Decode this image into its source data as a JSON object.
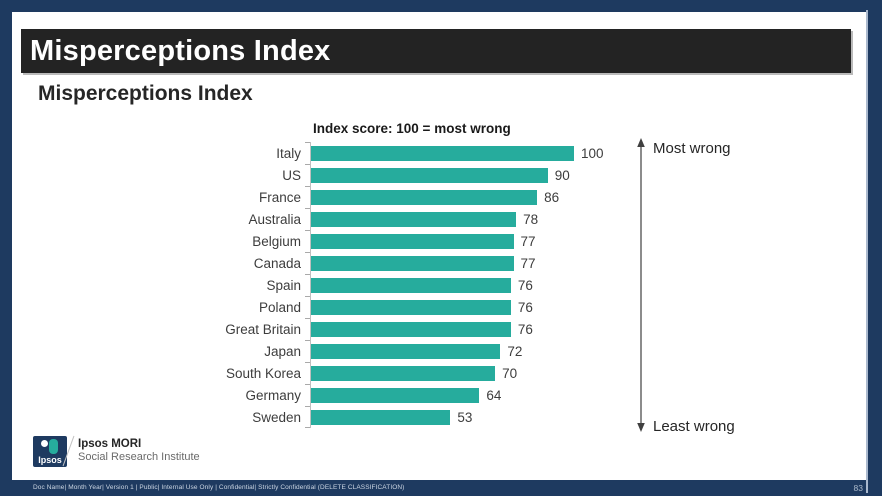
{
  "slide": {
    "header_title": "Misperceptions Index",
    "subtitle": "Misperceptions Index",
    "logo": {
      "mark_text": "Ipsos",
      "org_name": "Ipsos MORI",
      "org_subtitle": "Social Research Institute"
    },
    "footer": {
      "classification": "Doc Name| Month Year| Version 1 | Public| Internal Use Only | Confidential| Strictly Confidential (DELETE CLASSIFICATION)",
      "page_number": "83"
    }
  },
  "chart_data": {
    "type": "bar",
    "orientation": "horizontal",
    "title": "Index score: 100 = most wrong",
    "categories": [
      "Italy",
      "US",
      "France",
      "Australia",
      "Belgium",
      "Canada",
      "Spain",
      "Poland",
      "Great Britain",
      "Japan",
      "South Korea",
      "Germany",
      "Sweden"
    ],
    "values": [
      100,
      90,
      86,
      78,
      77,
      77,
      76,
      76,
      76,
      72,
      70,
      64,
      53
    ],
    "xlim": [
      0,
      100
    ],
    "grid": false,
    "data_labels": true,
    "bar_color": "#26AC9D",
    "annotations": {
      "top": "Most wrong",
      "bottom": "Least wrong"
    }
  },
  "colors": {
    "frame_navy": "#1E3A60",
    "header_bar": "#232323",
    "bar_teal": "#26AC9D",
    "axis_gray": "#BFBFBF"
  }
}
